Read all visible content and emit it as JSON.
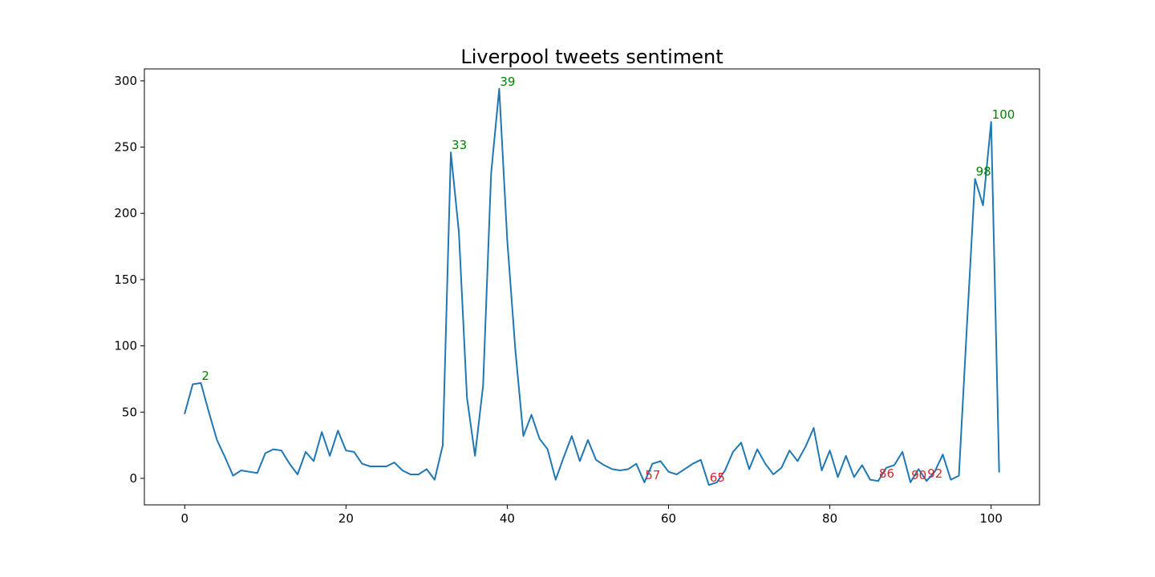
{
  "chart_data": {
    "type": "line",
    "title": "Liverpool tweets sentiment",
    "xlabel": "",
    "ylabel": "",
    "xlim": [
      -5,
      106
    ],
    "ylim": [
      -20,
      309
    ],
    "xticks": [
      0,
      20,
      40,
      60,
      80,
      100
    ],
    "yticks": [
      0,
      50,
      100,
      150,
      200,
      250,
      300
    ],
    "grid": false,
    "legend": "none",
    "series": [
      {
        "color": "#1f77b4",
        "x": [
          0,
          1,
          2,
          3,
          4,
          5,
          6,
          7,
          8,
          9,
          10,
          11,
          12,
          13,
          14,
          15,
          16,
          17,
          18,
          19,
          20,
          21,
          22,
          23,
          24,
          25,
          26,
          27,
          28,
          29,
          30,
          31,
          32,
          33,
          34,
          35,
          36,
          37,
          38,
          39,
          40,
          41,
          42,
          43,
          44,
          45,
          46,
          47,
          48,
          49,
          50,
          51,
          52,
          53,
          54,
          55,
          56,
          57,
          58,
          59,
          60,
          61,
          62,
          63,
          64,
          65,
          66,
          67,
          68,
          69,
          70,
          71,
          72,
          73,
          74,
          75,
          76,
          77,
          78,
          79,
          80,
          81,
          82,
          83,
          84,
          85,
          86,
          87,
          88,
          89,
          90,
          91,
          92,
          93,
          94,
          95,
          96,
          97,
          98,
          99,
          100,
          101
        ],
        "values": [
          49,
          71,
          72,
          50,
          29,
          16,
          2,
          6,
          5,
          4,
          19,
          22,
          21,
          11,
          3,
          20,
          13,
          35,
          17,
          36,
          21,
          20,
          11,
          9,
          9,
          9,
          12,
          6,
          3,
          3,
          7,
          -1,
          25,
          246,
          186,
          61,
          17,
          70,
          230,
          294,
          180,
          97,
          32,
          48,
          30,
          22,
          -1,
          16,
          32,
          13,
          29,
          14,
          10,
          7,
          6,
          7,
          11,
          -3,
          11,
          13,
          5,
          3,
          7,
          11,
          14,
          -5,
          -3,
          6,
          20,
          27,
          7,
          22,
          11,
          3,
          8,
          21,
          13,
          24,
          38,
          6,
          21,
          1,
          17,
          1,
          10,
          -1,
          -2,
          8,
          10,
          20,
          -3,
          7,
          -2,
          5,
          18,
          -1,
          2,
          115,
          226,
          206,
          269,
          5
        ]
      }
    ],
    "annotations": [
      {
        "text": "2",
        "x": 2,
        "y": 72,
        "color": "#008000"
      },
      {
        "text": "33",
        "x": 33,
        "y": 246,
        "color": "#008000"
      },
      {
        "text": "39",
        "x": 39,
        "y": 294,
        "color": "#008000"
      },
      {
        "text": "98",
        "x": 98,
        "y": 226,
        "color": "#008000"
      },
      {
        "text": "100",
        "x": 100,
        "y": 269,
        "color": "#008000"
      },
      {
        "text": "57",
        "x": 57,
        "y": -3,
        "color": "#d62728"
      },
      {
        "text": "65",
        "x": 65,
        "y": -5,
        "color": "#d62728"
      },
      {
        "text": "86",
        "x": 86,
        "y": -2,
        "color": "#d62728"
      },
      {
        "text": "90",
        "x": 90,
        "y": -3,
        "color": "#d62728"
      },
      {
        "text": "92",
        "x": 92,
        "y": -2,
        "color": "#d62728"
      }
    ]
  }
}
